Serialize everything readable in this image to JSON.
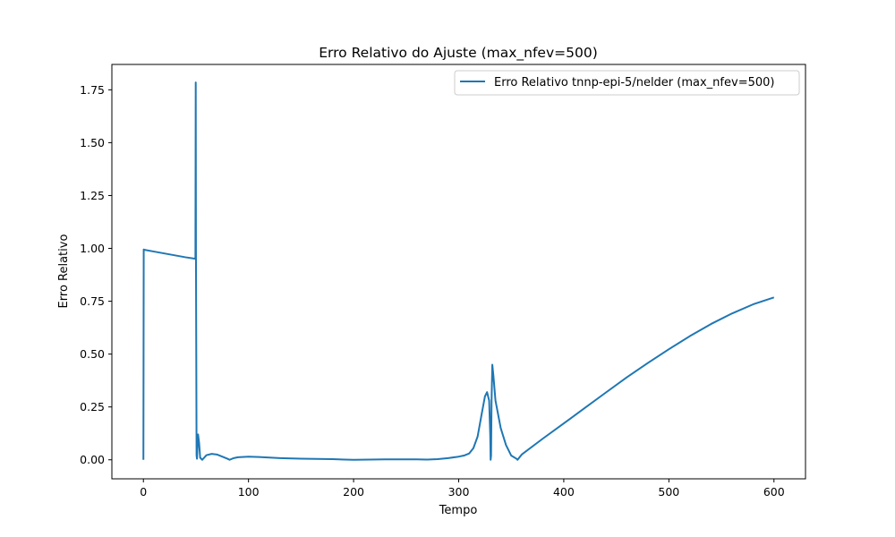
{
  "chart_data": {
    "type": "line",
    "title": "Erro Relativo do Ajuste (max_nfev=500)",
    "xlabel": "Tempo",
    "ylabel": "Erro Relativo",
    "xlim": [
      -30,
      630
    ],
    "ylim": [
      -0.09,
      1.87
    ],
    "xticks": [
      0,
      100,
      200,
      300,
      400,
      500,
      600
    ],
    "yticks": [
      0.0,
      0.25,
      0.5,
      0.75,
      1.0,
      1.25,
      1.5,
      1.75
    ],
    "xtick_labels": [
      "0",
      "100",
      "200",
      "300",
      "400",
      "500",
      "600"
    ],
    "ytick_labels": [
      "0.00",
      "0.25",
      "0.50",
      "0.75",
      "1.00",
      "1.25",
      "1.50",
      "1.75"
    ],
    "grid": false,
    "legend": {
      "position": "top-right"
    },
    "series": [
      {
        "name": "Erro Relativo tnnp-epi-5/nelder (max_nfev=500)",
        "color": "#1f77b4",
        "x": [
          0,
          0.3,
          1,
          10,
          20,
          30,
          40,
          49.5,
          49.8,
          50,
          50.6,
          51,
          52,
          53,
          54,
          56,
          60,
          65,
          70,
          75,
          80,
          82,
          86,
          90,
          100,
          110,
          130,
          150,
          180,
          200,
          230,
          260,
          270,
          280,
          290,
          300,
          305,
          310,
          314,
          318,
          322,
          325,
          327,
          329,
          330,
          330.4,
          330.8,
          331.3,
          332,
          333,
          335,
          340,
          345,
          350,
          355,
          356,
          360,
          380,
          400,
          420,
          440,
          460,
          480,
          500,
          520,
          540,
          560,
          580,
          600
        ],
        "y": [
          0.0,
          0.995,
          0.993,
          0.985,
          0.976,
          0.967,
          0.958,
          0.951,
          1.785,
          1.0,
          0.02,
          0.005,
          0.12,
          0.08,
          0.01,
          0.0,
          0.022,
          0.028,
          0.025,
          0.015,
          0.005,
          0.0,
          0.008,
          0.012,
          0.015,
          0.013,
          0.008,
          0.005,
          0.003,
          0.0,
          0.002,
          0.002,
          0.001,
          0.003,
          0.008,
          0.015,
          0.02,
          0.03,
          0.055,
          0.11,
          0.22,
          0.3,
          0.32,
          0.28,
          0.12,
          0.0,
          0.02,
          0.28,
          0.45,
          0.4,
          0.28,
          0.15,
          0.07,
          0.02,
          0.005,
          0.0,
          0.025,
          0.1,
          0.172,
          0.245,
          0.318,
          0.39,
          0.458,
          0.523,
          0.585,
          0.642,
          0.692,
          0.735,
          0.768
        ]
      }
    ]
  }
}
